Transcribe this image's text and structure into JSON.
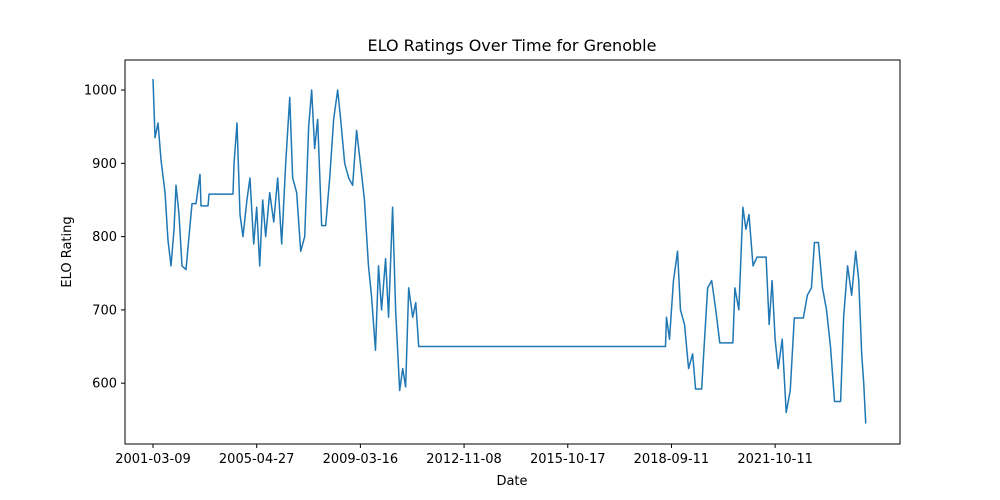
{
  "chart_data": {
    "type": "line",
    "title": "ELO Ratings Over Time for Grenoble",
    "x_label": "Date",
    "y_label": "ELO Rating",
    "series": [
      {
        "name": "Grenoble",
        "color": "#1f77b4",
        "x": [
          "2001-03-09",
          "2001-04-07",
          "2001-05-21",
          "2001-07-03",
          "2001-08-31",
          "2001-10-13",
          "2001-11-26",
          "2002-01-09",
          "2002-02-07",
          "2002-03-23",
          "2002-05-05",
          "2002-07-02",
          "2002-08-15",
          "2002-09-28",
          "2002-11-25",
          "2003-01-22",
          "2003-02-06",
          "2003-05-19",
          "2003-06-03",
          "2004-05-17",
          "2004-06-01",
          "2004-07-14",
          "2004-08-27",
          "2004-10-09",
          "2004-12-06",
          "2005-01-19",
          "2005-03-14",
          "2005-04-27",
          "2005-06-07",
          "2005-07-18",
          "2005-08-28",
          "2005-10-22",
          "2005-12-16",
          "2006-02-08",
          "2006-04-04",
          "2006-05-29",
          "2006-07-23",
          "2006-09-01",
          "2006-10-26",
          "2006-12-20",
          "2007-02-13",
          "2007-04-08",
          "2007-05-19",
          "2007-06-29",
          "2007-08-09",
          "2007-10-03",
          "2007-11-27",
          "2008-01-21",
          "2008-03-15",
          "2008-05-09",
          "2008-06-19",
          "2008-08-13",
          "2008-10-07",
          "2008-11-30",
          "2009-01-23",
          "2009-03-16",
          "2009-05-07",
          "2009-06-28",
          "2009-08-05",
          "2009-09-26",
          "2009-11-04",
          "2009-12-13",
          "2010-02-03",
          "2010-03-13",
          "2010-05-04",
          "2010-06-12",
          "2010-08-03",
          "2010-09-11",
          "2010-10-19",
          "2010-11-27",
          "2011-01-18",
          "2011-02-26",
          "2011-04-05",
          "2018-07-12",
          "2018-07-22",
          "2018-08-22",
          "2018-10-03",
          "2018-11-16",
          "2018-12-18",
          "2019-01-31",
          "2019-03-16",
          "2019-04-29",
          "2019-05-31",
          "2019-08-05",
          "2019-08-27",
          "2019-10-09",
          "2019-11-22",
          "2020-01-05",
          "2020-02-18",
          "2020-07-09",
          "2020-07-31",
          "2020-09-12",
          "2020-10-26",
          "2020-11-28",
          "2020-12-31",
          "2021-02-13",
          "2021-03-28",
          "2021-07-05",
          "2021-08-07",
          "2021-09-08",
          "2021-10-11",
          "2021-11-13",
          "2021-12-27",
          "2022-02-08",
          "2022-03-24",
          "2022-05-07",
          "2022-06-09",
          "2022-08-13",
          "2022-09-26",
          "2022-11-09",
          "2022-12-12",
          "2023-01-24",
          "2023-03-09",
          "2023-04-22",
          "2023-06-04",
          "2023-07-18",
          "2023-09-22",
          "2023-10-25",
          "2023-12-07",
          "2024-01-20",
          "2024-03-04",
          "2024-04-06",
          "2024-05-08",
          "2024-05-30",
          "2024-06-21"
        ],
        "values": [
          1015,
          935,
          955,
          905,
          860,
          795,
          760,
          810,
          870,
          830,
          760,
          755,
          800,
          845,
          845,
          885,
          842,
          842,
          858,
          858,
          900,
          955,
          830,
          800,
          850,
          880,
          790,
          840,
          760,
          850,
          800,
          860,
          820,
          880,
          790,
          900,
          990,
          880,
          860,
          780,
          800,
          950,
          1000,
          920,
          960,
          815,
          815,
          880,
          960,
          1000,
          960,
          900,
          880,
          870,
          945,
          900,
          850,
          760,
          720,
          645,
          760,
          700,
          770,
          690,
          840,
          700,
          590,
          620,
          595,
          730,
          690,
          710,
          650,
          650,
          690,
          660,
          740,
          780,
          700,
          680,
          620,
          640,
          592,
          592,
          640,
          730,
          740,
          700,
          655,
          655,
          730,
          700,
          840,
          810,
          830,
          760,
          772,
          772,
          680,
          740,
          660,
          620,
          660,
          560,
          590,
          689,
          689,
          689,
          720,
          730,
          792,
          792,
          730,
          700,
          650,
          575,
          575,
          690,
          760,
          720,
          780,
          740,
          640,
          600,
          545
        ]
      }
    ],
    "xlim": [
      "2000-01-26",
      "2025-06-28"
    ],
    "xticks": [
      "2001-03-09",
      "2005-04-27",
      "2009-03-16",
      "2012-11-08",
      "2015-10-17",
      "2018-09-11",
      "2021-10-11"
    ],
    "ylim": [
      517,
      1041
    ],
    "yticks": [
      600,
      700,
      800,
      900,
      1000
    ]
  }
}
